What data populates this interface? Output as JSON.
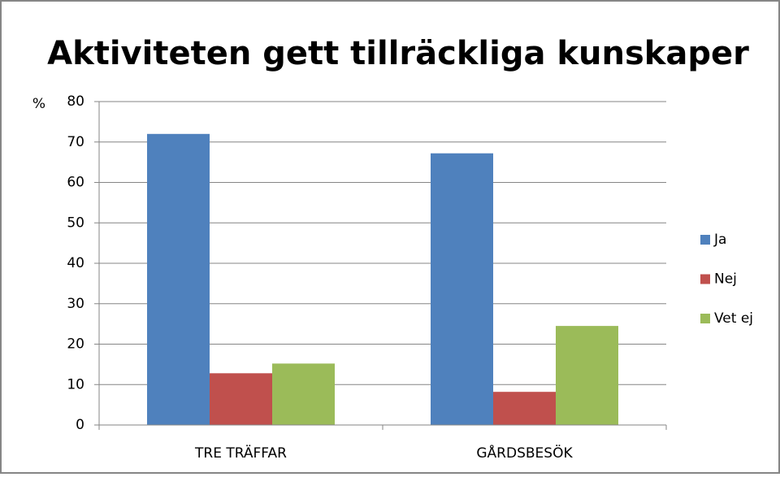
{
  "chart_data": {
    "type": "bar",
    "title": "Aktiviteten gett tillräckliga kunskaper",
    "y_label": "%",
    "categories": [
      "TRE TRÄFFAR",
      "GÅRDSBESÖK"
    ],
    "series": [
      {
        "name": "Ja",
        "color": "#4f81bd",
        "values": [
          72,
          67.2
        ]
      },
      {
        "name": "Nej",
        "color": "#c0504d",
        "values": [
          12.8,
          8.2
        ]
      },
      {
        "name": "Vet ej",
        "color": "#9bbb59",
        "values": [
          15.2,
          24.5
        ]
      }
    ],
    "ylim": [
      0,
      80
    ],
    "yticks": [
      0,
      10,
      20,
      30,
      40,
      50,
      60,
      70,
      80
    ],
    "grid": true,
    "legend": "right"
  }
}
